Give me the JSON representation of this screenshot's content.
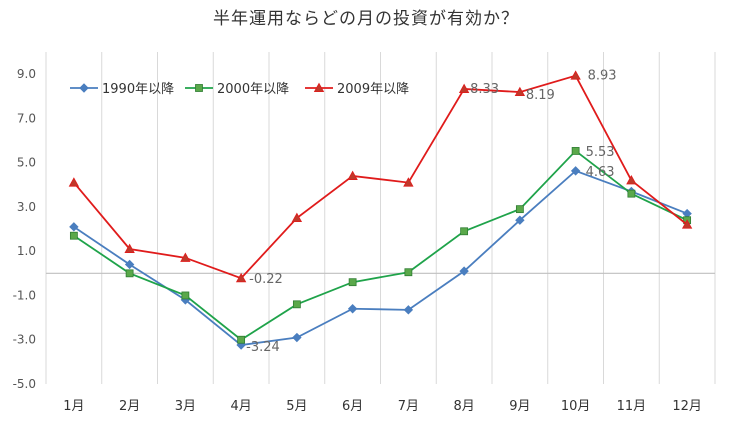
{
  "chart_data": {
    "type": "line",
    "title": "半年運用ならどの月の投資が有効か？",
    "categories": [
      "1月",
      "2月",
      "3月",
      "4月",
      "5月",
      "6月",
      "7月",
      "8月",
      "9月",
      "10月",
      "11月",
      "12月"
    ],
    "ylim": [
      -5.0,
      10.0
    ],
    "yticks": [
      "9.0",
      "7.0",
      "5.0",
      "3.0",
      "1.0",
      "-1.0",
      "-3.0",
      "-5.0"
    ],
    "yticks_values": [
      9,
      7,
      5,
      3,
      1,
      -1,
      -3,
      -5
    ],
    "grid": "vertical",
    "legend_position": "top-left",
    "series": [
      {
        "name": "1990年以降",
        "color": "#4a7ebf",
        "marker": "diamond",
        "values": [
          2.1,
          0.4,
          -1.2,
          -3.24,
          -2.9,
          -1.6,
          -1.65,
          0.1,
          2.4,
          4.63,
          3.7,
          2.7
        ]
      },
      {
        "name": "2000年以降",
        "color": "#1fa34a",
        "marker": "square",
        "values": [
          1.7,
          0.0,
          -1.0,
          -3.0,
          -1.4,
          -0.4,
          0.05,
          1.9,
          2.9,
          5.53,
          3.6,
          2.4
        ]
      },
      {
        "name": "2009年以降",
        "color": "#e01b1b",
        "marker": "triangle",
        "values": [
          4.1,
          1.1,
          0.7,
          -0.22,
          2.5,
          4.4,
          4.1,
          8.33,
          8.19,
          8.93,
          4.2,
          2.2
        ]
      }
    ],
    "annotations": [
      {
        "series": 2,
        "index": 3,
        "text": "-0.22"
      },
      {
        "series": 0,
        "index": 3,
        "text": "-3.24"
      },
      {
        "series": 2,
        "index": 7,
        "text": "8.33"
      },
      {
        "series": 2,
        "index": 8,
        "text": "8.19"
      },
      {
        "series": 2,
        "index": 9,
        "text": "8.93"
      },
      {
        "series": 1,
        "index": 9,
        "text": "5.53"
      },
      {
        "series": 0,
        "index": 9,
        "text": "4.63"
      }
    ]
  }
}
